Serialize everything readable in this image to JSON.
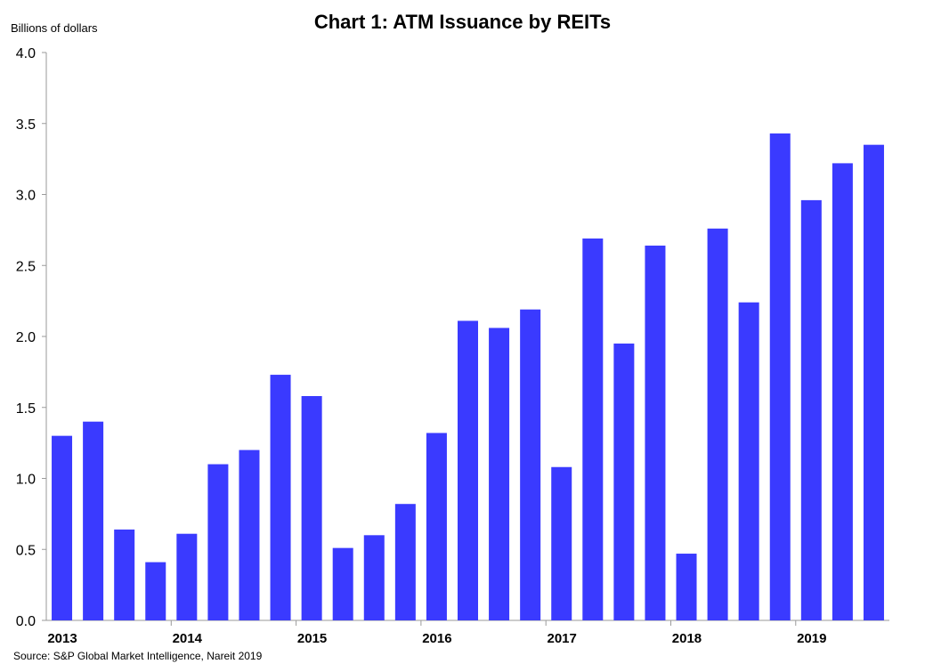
{
  "chart_data": {
    "type": "bar",
    "title": "Chart 1: ATM Issuance by REITs",
    "ylabel": "Billions of dollars",
    "xlabel": "",
    "source": "Source: S&P Global Market Intelligence, Nareit 2019",
    "ylim": [
      0,
      4.0
    ],
    "yticks": [
      "0.0",
      "0.5",
      "1.0",
      "1.5",
      "2.0",
      "2.5",
      "3.0",
      "3.5",
      "4.0"
    ],
    "year_labels": [
      "2013",
      "2014",
      "2015",
      "2016",
      "2017",
      "2018",
      "2019"
    ],
    "categories": [
      "2013 Q1",
      "2013 Q2",
      "2013 Q3",
      "2013 Q4",
      "2014 Q1",
      "2014 Q2",
      "2014 Q3",
      "2014 Q4",
      "2015 Q1",
      "2015 Q2",
      "2015 Q3",
      "2015 Q4",
      "2016 Q1",
      "2016 Q2",
      "2016 Q3",
      "2016 Q4",
      "2017 Q1",
      "2017 Q2",
      "2017 Q3",
      "2017 Q4",
      "2018 Q1",
      "2018 Q2",
      "2018 Q3",
      "2018 Q4",
      "2019 Q1",
      "2019 Q2",
      "2019 Q3"
    ],
    "values": [
      1.3,
      1.4,
      0.64,
      0.41,
      0.61,
      1.1,
      1.2,
      1.73,
      1.58,
      0.51,
      0.6,
      0.82,
      1.32,
      2.11,
      2.06,
      2.19,
      1.08,
      2.69,
      1.95,
      2.64,
      0.47,
      2.76,
      2.24,
      3.43,
      2.96,
      3.22,
      3.35
    ],
    "bar_color": "#3a3aff",
    "grid": false,
    "legend": "none"
  }
}
